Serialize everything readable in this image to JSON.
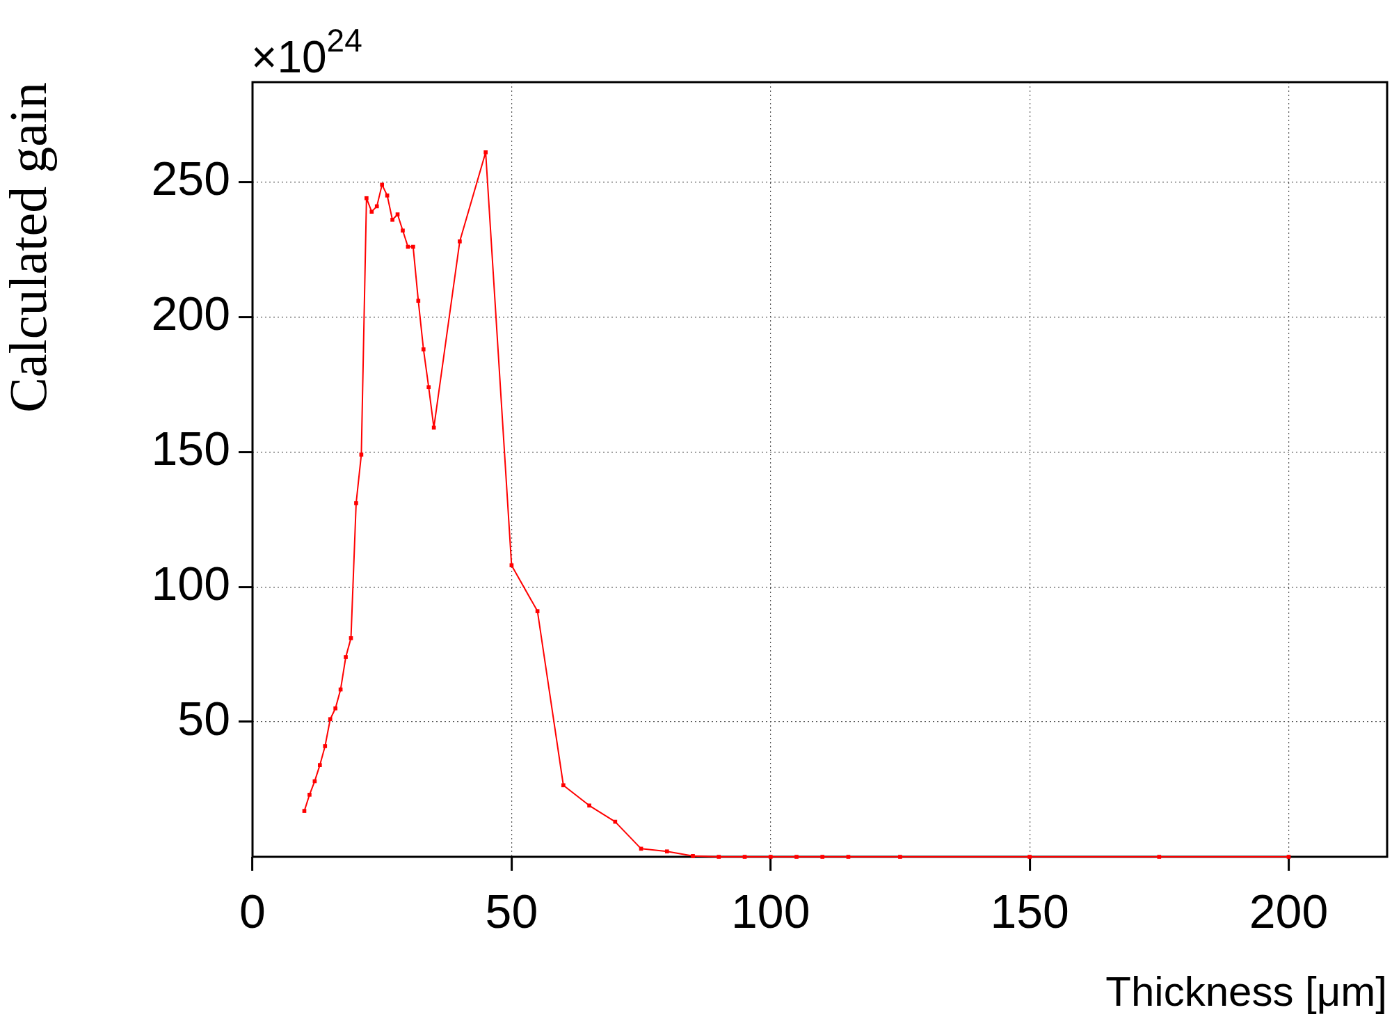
{
  "chart_data": {
    "type": "line",
    "xlabel": "Thickness [μm]",
    "ylabel": "Calculated gain",
    "annotations": [
      "×10$^{24}$"
    ],
    "x": [
      10,
      11,
      12,
      13,
      14,
      15,
      16,
      17,
      18,
      19,
      20,
      21,
      22,
      23,
      24,
      25,
      26,
      27,
      28,
      29,
      30,
      31,
      32,
      33,
      34,
      35,
      40,
      45,
      50,
      55,
      60,
      65,
      70,
      75,
      80,
      85,
      90,
      95,
      100,
      105,
      110,
      115,
      125,
      150,
      175,
      200
    ],
    "series": [
      {
        "color": "#ff0000",
        "values": [
          17,
          23,
          28,
          34,
          41,
          51,
          55,
          62,
          74,
          81,
          131,
          149,
          244,
          239,
          241,
          249,
          245,
          236,
          238,
          232,
          226,
          226,
          206,
          188,
          174,
          159,
          228,
          261,
          108,
          91,
          26.5,
          19,
          13,
          3,
          2,
          0.3,
          0,
          0,
          0,
          0,
          0,
          0,
          0,
          0,
          0,
          0
        ]
      }
    ],
    "xlim": [
      0,
      219
    ],
    "ylim": [
      0,
      287
    ],
    "xticks": [
      0,
      50,
      100,
      150,
      200
    ],
    "yticks": [
      50,
      100,
      150,
      200,
      250
    ],
    "grid": true,
    "legend": false,
    "marker": "square",
    "line_style": "solid"
  }
}
